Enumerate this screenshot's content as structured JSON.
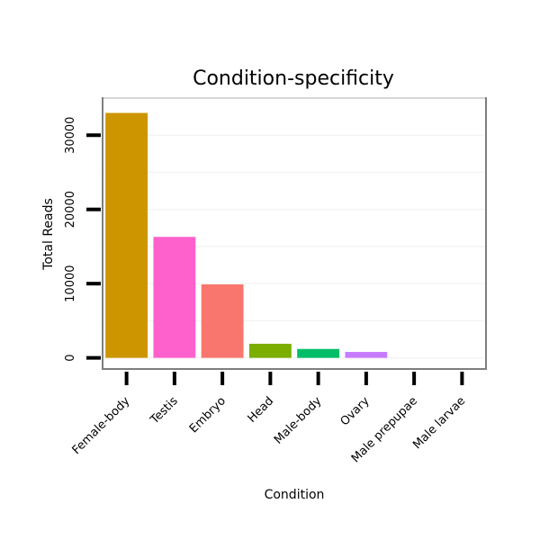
{
  "chart_data": {
    "type": "bar",
    "title": "Condition-specificity",
    "xlabel": "Condition",
    "ylabel": "Total Reads",
    "categories": [
      "Female-body",
      "Testis",
      "Embryo",
      "Head",
      "Male-body",
      "Ovary",
      "Male prepupae",
      "Male larvae"
    ],
    "values": [
      33000,
      16300,
      9900,
      1900,
      1200,
      800,
      0,
      0
    ],
    "colors": [
      "#CD9600",
      "#FF61CC",
      "#F8766D",
      "#7CAE00",
      "#00BE67",
      "#C77CFF",
      "#00A9FF",
      "#00BFC4"
    ],
    "ylim": [
      -1500,
      35000
    ],
    "yticks": [
      0,
      10000,
      20000,
      30000
    ],
    "grid": true,
    "legend": "none"
  }
}
